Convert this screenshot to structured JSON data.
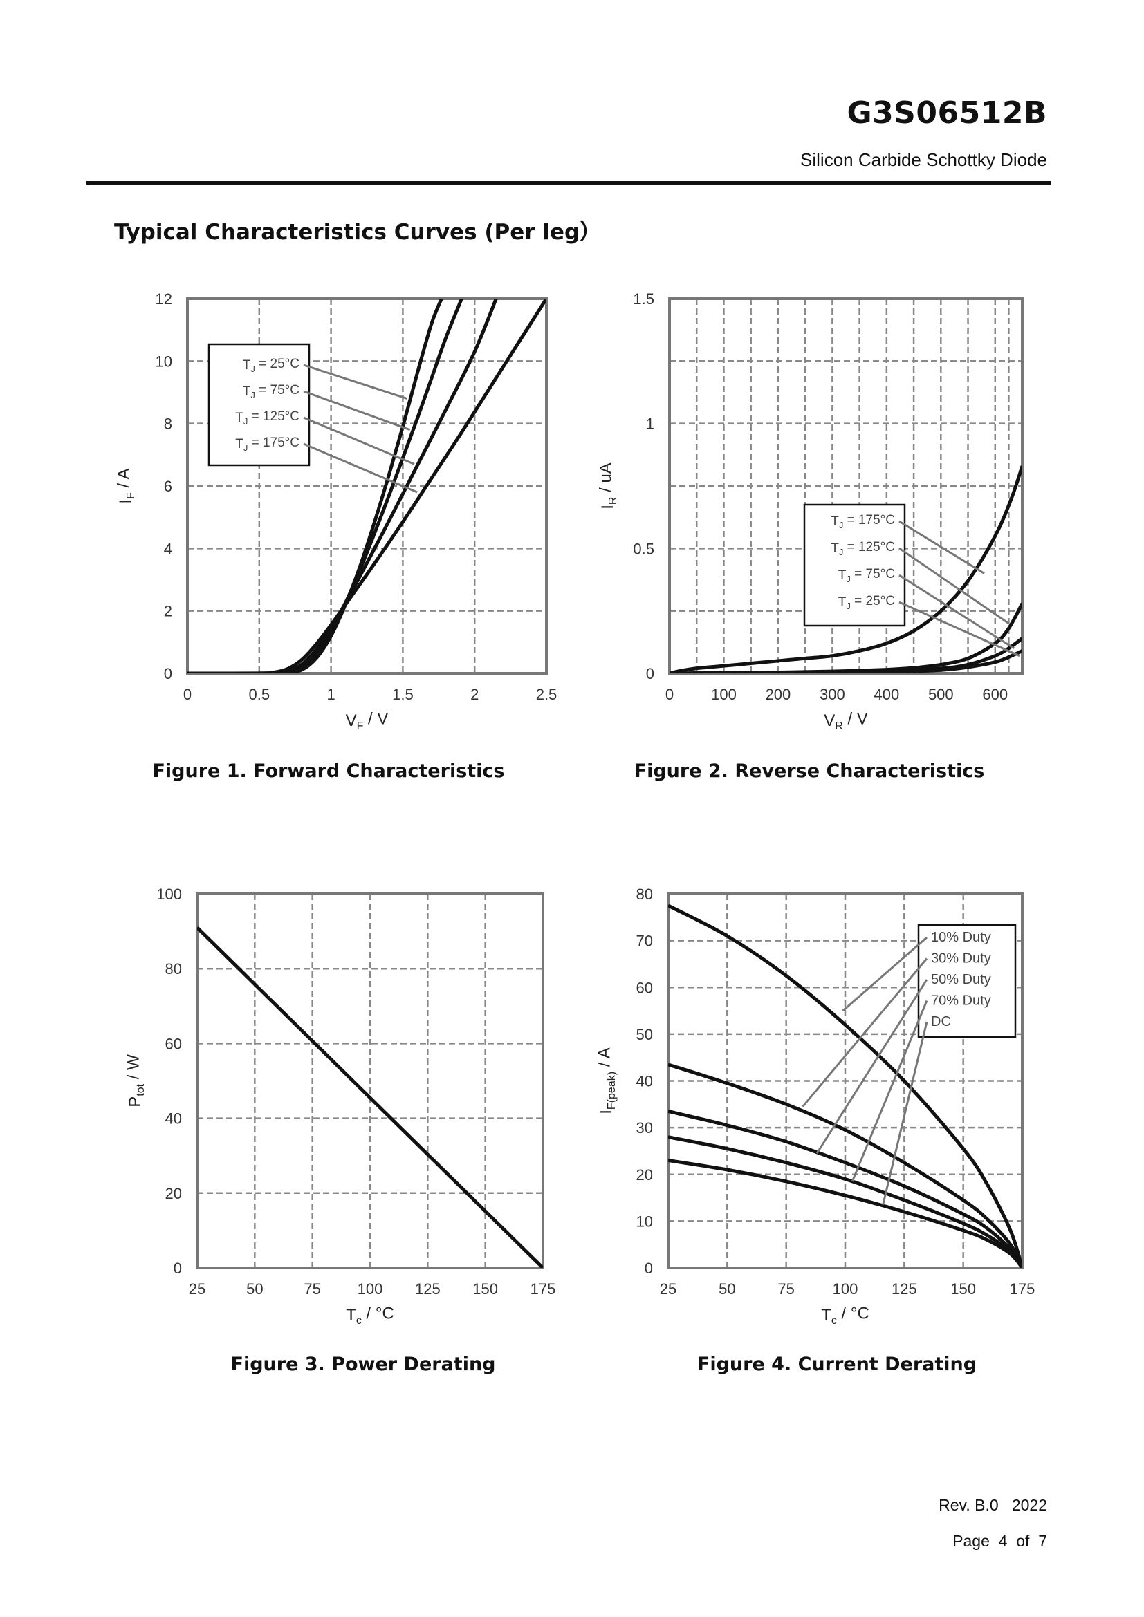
{
  "header": {
    "part_number": "G3S06512B",
    "description": "Silicon Carbide Schottky Diode"
  },
  "section_title": "Typical Characteristics Curves (Per leg）",
  "footer": {
    "revision": "Rev. B.0",
    "year": "2022",
    "page_word": "Page",
    "page_num": "4",
    "of_word": "of",
    "page_total": "7"
  },
  "colors": {
    "curve": "#111111",
    "grid": "#888888",
    "leader": "#777777",
    "frame": "#777777"
  },
  "chart_data": [
    {
      "id": "fig1",
      "type": "line",
      "caption": "Figure 1. Forward Characteristics",
      "xlabel_main": "V",
      "xlabel_sub": "F",
      "xlabel_unit": " / V",
      "ylabel_main": "I",
      "ylabel_sub": "F",
      "ylabel_unit": " / A",
      "xlim": [
        0,
        2.5
      ],
      "ylim": [
        0,
        12
      ],
      "xticks": [
        0,
        0.5,
        1,
        1.5,
        2,
        2.5
      ],
      "xtick_labels": [
        "0",
        "0.5",
        "1",
        "1.5",
        "2",
        "2.5"
      ],
      "yticks": [
        0,
        2,
        4,
        6,
        8,
        10,
        12
      ],
      "ytick_labels": [
        "0",
        "2",
        "4",
        "6",
        "8",
        "10",
        "12"
      ],
      "grid": true,
      "legend_position": "top-left",
      "series": [
        {
          "name": "TJ = 25°C",
          "label_main": "T",
          "label_sub": "J",
          "label_rest": " = 25°C",
          "x": [
            0,
            0.6,
            0.7,
            0.8,
            0.9,
            1.0,
            1.1,
            1.2,
            1.3,
            1.4,
            1.5,
            1.6,
            1.7,
            1.77
          ],
          "y": [
            0,
            0,
            0.02,
            0.12,
            0.5,
            1.2,
            2.2,
            3.4,
            4.8,
            6.3,
            7.9,
            9.6,
            11.2,
            12
          ],
          "leader_target": [
            1.53,
            8.8
          ]
        },
        {
          "name": "TJ = 75°C",
          "label_main": "T",
          "label_sub": "J",
          "label_rest": " = 75°C",
          "x": [
            0,
            0.6,
            0.7,
            0.8,
            0.9,
            1.0,
            1.1,
            1.2,
            1.3,
            1.4,
            1.5,
            1.6,
            1.7,
            1.8,
            1.91
          ],
          "y": [
            0,
            0,
            0.04,
            0.2,
            0.65,
            1.35,
            2.25,
            3.3,
            4.45,
            5.65,
            6.9,
            8.15,
            9.45,
            10.75,
            12
          ],
          "leader_target": [
            1.55,
            7.8
          ]
        },
        {
          "name": "TJ = 125°C",
          "label_main": "T",
          "label_sub": "J",
          "label_rest": " = 125°C",
          "x": [
            0,
            0.6,
            0.7,
            0.8,
            0.9,
            1.0,
            1.1,
            1.2,
            1.4,
            1.6,
            1.8,
            2.0,
            2.15
          ],
          "y": [
            0,
            0.01,
            0.07,
            0.3,
            0.78,
            1.45,
            2.25,
            3.1,
            4.85,
            6.65,
            8.45,
            10.3,
            12
          ],
          "leader_target": [
            1.58,
            6.7
          ]
        },
        {
          "name": "TJ = 175°C",
          "label_main": "T",
          "label_sub": "J",
          "label_rest": " = 175°C",
          "x": [
            0,
            0.5,
            0.6,
            0.7,
            0.8,
            0.9,
            1.0,
            1.1,
            1.3,
            1.5,
            1.7,
            1.9,
            2.1,
            2.3,
            2.5
          ],
          "y": [
            0,
            0,
            0.03,
            0.15,
            0.45,
            0.95,
            1.55,
            2.2,
            3.5,
            4.85,
            6.25,
            7.65,
            9.1,
            10.55,
            12
          ],
          "leader_target": [
            1.6,
            5.8
          ]
        }
      ]
    },
    {
      "id": "fig2",
      "type": "line",
      "caption": "Figure 2. Reverse Characteristics",
      "xlabel_main": "V",
      "xlabel_sub": "R",
      "xlabel_unit": " / V",
      "ylabel_main": "I",
      "ylabel_sub": "R",
      "ylabel_unit": " / uA",
      "xlim": [
        0,
        650
      ],
      "ylim": [
        0,
        1.5
      ],
      "xticks": [
        0,
        100,
        200,
        300,
        400,
        500,
        600
      ],
      "xtick_labels": [
        "0",
        "100",
        "200",
        "300",
        "400",
        "500",
        "600"
      ],
      "yticks": [
        0,
        0.5,
        1,
        1.5
      ],
      "ytick_labels": [
        "0",
        "0.5",
        "1",
        "1.5"
      ],
      "grid": true,
      "legend_position": "center-right",
      "series": [
        {
          "name": "TJ = 175°C",
          "label_main": "T",
          "label_sub": "J",
          "label_rest": " = 175°C",
          "x": [
            0,
            20,
            50,
            100,
            150,
            200,
            250,
            300,
            350,
            400,
            450,
            500,
            550,
            600,
            630,
            650
          ],
          "y": [
            0,
            0.01,
            0.02,
            0.03,
            0.04,
            0.05,
            0.06,
            0.07,
            0.09,
            0.12,
            0.17,
            0.25,
            0.37,
            0.55,
            0.7,
            0.83
          ],
          "leader_target": [
            580,
            0.4
          ]
        },
        {
          "name": "TJ = 125°C",
          "label_main": "T",
          "label_sub": "J",
          "label_rest": " = 125°C",
          "x": [
            0,
            100,
            200,
            300,
            400,
            450,
            500,
            550,
            600,
            625,
            650
          ],
          "y": [
            0,
            0.002,
            0.004,
            0.008,
            0.015,
            0.022,
            0.035,
            0.06,
            0.12,
            0.18,
            0.28
          ],
          "leader_target": [
            625,
            0.2
          ]
        },
        {
          "name": "TJ = 75°C",
          "label_main": "T",
          "label_sub": "J",
          "label_rest": " = 75°C",
          "x": [
            0,
            100,
            200,
            300,
            400,
            500,
            550,
            600,
            625,
            650
          ],
          "y": [
            0,
            0.001,
            0.002,
            0.004,
            0.008,
            0.02,
            0.035,
            0.07,
            0.1,
            0.14
          ],
          "leader_target": [
            635,
            0.1
          ]
        },
        {
          "name": "TJ = 25°C",
          "label_main": "T",
          "label_sub": "J",
          "label_rest": " = 25°C",
          "x": [
            0,
            100,
            200,
            300,
            400,
            500,
            550,
            600,
            625,
            650
          ],
          "y": [
            0,
            0.001,
            0.001,
            0.002,
            0.005,
            0.013,
            0.025,
            0.045,
            0.065,
            0.09
          ],
          "leader_target": [
            645,
            0.07
          ]
        }
      ]
    },
    {
      "id": "fig3",
      "type": "line",
      "caption": "Figure 3. Power Derating",
      "xlabel_main": "T",
      "xlabel_sub": "c",
      "xlabel_unit": " / °C",
      "ylabel_main": "P",
      "ylabel_sub": "tot",
      "ylabel_unit": " / W",
      "xlim": [
        25,
        175
      ],
      "ylim": [
        0,
        100
      ],
      "xticks": [
        25,
        50,
        75,
        100,
        125,
        150,
        175
      ],
      "xtick_labels": [
        "25",
        "50",
        "75",
        "100",
        "125",
        "150",
        "175"
      ],
      "yticks": [
        0,
        20,
        40,
        60,
        80,
        100
      ],
      "ytick_labels": [
        "0",
        "20",
        "40",
        "60",
        "80",
        "100"
      ],
      "grid": true,
      "legend_position": "none",
      "series": [
        {
          "name": "Ptot",
          "x": [
            25,
            175
          ],
          "y": [
            91,
            0
          ]
        }
      ]
    },
    {
      "id": "fig4",
      "type": "line",
      "caption": "Figure 4. Current Derating",
      "xlabel_main": "T",
      "xlabel_sub": "c",
      "xlabel_unit": " / °C",
      "ylabel_main": "I",
      "ylabel_sub": "F(peak)",
      "ylabel_unit": " / A",
      "xlim": [
        25,
        175
      ],
      "ylim": [
        0,
        80
      ],
      "xticks": [
        25,
        50,
        75,
        100,
        125,
        150,
        175
      ],
      "xtick_labels": [
        "25",
        "50",
        "75",
        "100",
        "125",
        "150",
        "175"
      ],
      "yticks": [
        0,
        10,
        20,
        30,
        40,
        50,
        60,
        70,
        80
      ],
      "ytick_labels": [
        "0",
        "10",
        "20",
        "30",
        "40",
        "50",
        "60",
        "70",
        "80"
      ],
      "grid": true,
      "legend_position": "top-right",
      "series": [
        {
          "name": "10% Duty",
          "label_main": "10% Duty",
          "label_sub": "",
          "label_rest": "",
          "x": [
            25,
            50,
            75,
            100,
            125,
            150,
            160,
            170,
            175
          ],
          "y": [
            77.5,
            71,
            62.5,
            52,
            40,
            25.5,
            18,
            8,
            0
          ],
          "leader_target": [
            99,
            55
          ]
        },
        {
          "name": "30% Duty",
          "label_main": "30% Duty",
          "label_sub": "",
          "label_rest": "",
          "x": [
            25,
            50,
            75,
            100,
            125,
            150,
            160,
            170,
            175
          ],
          "y": [
            43.5,
            39.5,
            35,
            29.5,
            22.5,
            14.5,
            10.5,
            5,
            0
          ],
          "leader_target": [
            82,
            34.5
          ]
        },
        {
          "name": "50% Duty",
          "label_main": "50% Duty",
          "label_sub": "",
          "label_rest": "",
          "x": [
            25,
            50,
            75,
            100,
            125,
            150,
            160,
            170,
            175
          ],
          "y": [
            33.5,
            30.5,
            27,
            22.5,
            17.5,
            11.5,
            8.5,
            4,
            0
          ],
          "leader_target": [
            88,
            24.5
          ]
        },
        {
          "name": "70% Duty",
          "label_main": "70% Duty",
          "label_sub": "",
          "label_rest": "",
          "x": [
            25,
            50,
            75,
            100,
            125,
            150,
            160,
            170,
            175
          ],
          "y": [
            28,
            25.5,
            22.5,
            19,
            14.5,
            9.5,
            7,
            3.5,
            0
          ],
          "leader_target": [
            103,
            18.5
          ]
        },
        {
          "name": "DC",
          "label_main": "DC",
          "label_sub": "",
          "label_rest": "",
          "x": [
            25,
            50,
            75,
            100,
            125,
            150,
            160,
            170,
            175
          ],
          "y": [
            23,
            21,
            18.5,
            15.5,
            12,
            8,
            6,
            3,
            0
          ],
          "leader_target": [
            116,
            13.5
          ]
        }
      ]
    }
  ]
}
